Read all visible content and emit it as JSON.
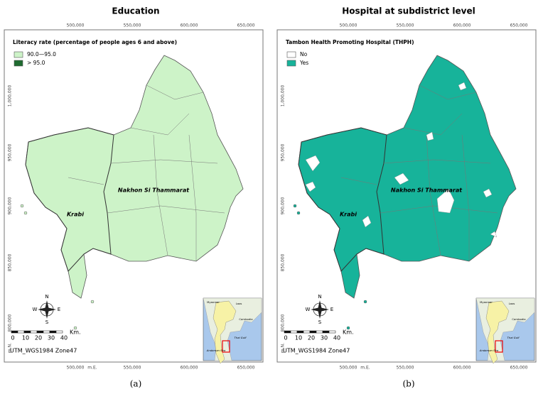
{
  "panels": [
    {
      "title": "Education",
      "legend": {
        "title": "Literacy rate (percentage of people ages 6 and above)",
        "items": [
          {
            "label": "90.0—95.0",
            "color": "#cdf3c8"
          },
          {
            "label": "> 95.0",
            "color": "#1f6b30"
          }
        ]
      },
      "map_color": "#cdf3c8",
      "top_ticks": [
        "500,000",
        "550,000",
        "600,000",
        "650,000"
      ],
      "bottom_ticks": [
        "500,000",
        "m.E.",
        "550,000",
        "600,000",
        "650,000"
      ],
      "left_ticks": [
        "1,000,000",
        "950,000",
        "900,000",
        "850,000",
        "800,000",
        "m.N."
      ],
      "places": [
        "Nakhon Si Thammarat",
        "Krabi"
      ],
      "scale_labels": [
        "0",
        "10",
        "20",
        "30",
        "40",
        "Km."
      ],
      "projection": "UTM_WGS1984 Zone47",
      "inset_labels": [
        "Myanmar",
        "Laos",
        "Cambodia",
        "Thai Gulf",
        "Andaman Sea"
      ],
      "compass": [
        "N",
        "S",
        "W",
        "E"
      ],
      "caption": "(a)"
    },
    {
      "title": "Hospital at subdistrict level",
      "legend": {
        "title": "Tambon Health Promoting Hospital (THPH)",
        "items": [
          {
            "label": "No",
            "color": "#ffffff"
          },
          {
            "label": "Yes",
            "color": "#17b39a"
          }
        ]
      },
      "map_color": "#17b39a",
      "top_ticks": [
        "500,000",
        "550,000",
        "600,000",
        "650,000"
      ],
      "bottom_ticks": [
        "500,000",
        "m.E.",
        "550,000",
        "600,000",
        "650,000"
      ],
      "left_ticks": [
        "1,000,000",
        "950,000",
        "900,000",
        "850,000",
        "800,000",
        "m.N."
      ],
      "places": [
        "Nakhon Si Thammarat",
        "Krabi"
      ],
      "scale_labels": [
        "0",
        "10",
        "20",
        "30",
        "40",
        "Km."
      ],
      "projection": "UTM_WGS1984 Zone47",
      "inset_labels": [
        "Myanmar",
        "Laos",
        "Cambodia",
        "Thai Gulf",
        "Andaman Sea"
      ],
      "compass": [
        "N",
        "S",
        "W",
        "E"
      ],
      "caption": "(b)"
    }
  ]
}
